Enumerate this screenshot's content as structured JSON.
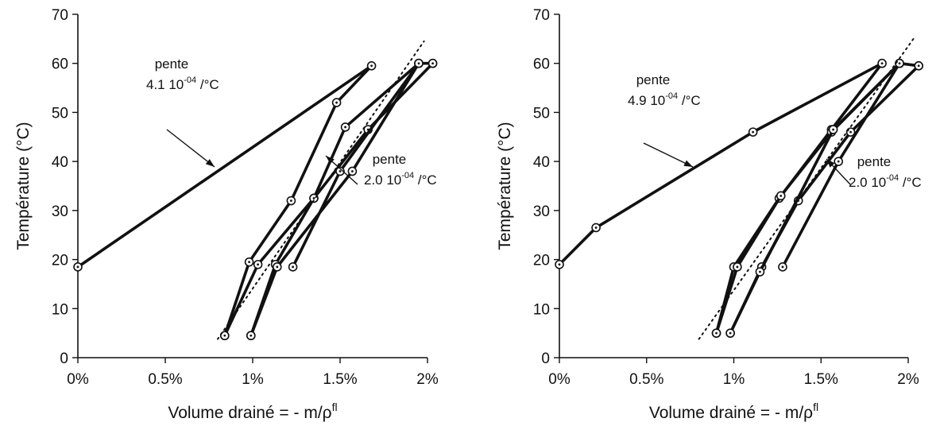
{
  "chart_data": [
    {
      "type": "line",
      "xlabel": "Volume drainé = - m/ρ",
      "xlabel_sup": "fl",
      "ylabel": "Température (°C)",
      "xlim": [
        0,
        2.0
      ],
      "ylim": [
        0,
        70
      ],
      "x_unit": "%",
      "x_ticks": [
        0,
        0.5,
        1.0,
        1.5,
        2.0
      ],
      "x_tick_labels": [
        "0%",
        "0.5%",
        "1%",
        "1.5%",
        "2%"
      ],
      "y_ticks": [
        0,
        10,
        20,
        30,
        40,
        50,
        60,
        70
      ],
      "y_tick_labels": [
        "0",
        "10",
        "20",
        "30",
        "40",
        "50",
        "60",
        "70"
      ],
      "series": [
        {
          "style": "solid",
          "markers": true,
          "points": [
            [
              0.0,
              18.5
            ],
            [
              1.68,
              59.5
            ],
            [
              1.48,
              52
            ],
            [
              1.22,
              32
            ],
            [
              0.98,
              19.5
            ],
            [
              0.84,
              4.5
            ]
          ]
        },
        {
          "style": "solid",
          "markers": true,
          "points": [
            [
              0.84,
              4.5
            ],
            [
              1.03,
              19
            ],
            [
              1.35,
              32.5
            ],
            [
              1.53,
              47
            ],
            [
              1.95,
              60
            ],
            [
              2.03,
              60
            ]
          ]
        },
        {
          "style": "solid",
          "markers": true,
          "points": [
            [
              2.03,
              60
            ],
            [
              1.66,
              46.5
            ],
            [
              1.35,
              32.5
            ],
            [
              1.13,
              19
            ],
            [
              0.99,
              4.5
            ]
          ]
        },
        {
          "style": "solid",
          "markers": true,
          "points": [
            [
              0.99,
              4.5
            ],
            [
              1.14,
              18.5
            ],
            [
              1.57,
              38
            ],
            [
              1.95,
              60
            ]
          ]
        },
        {
          "style": "solid",
          "markers": true,
          "points": [
            [
              1.95,
              60
            ],
            [
              1.5,
              38
            ],
            [
              1.23,
              18.5
            ]
          ]
        },
        {
          "style": "dotted",
          "markers": false,
          "points": [
            [
              0.8,
              3.8
            ],
            [
              1.98,
              64.5
            ]
          ]
        }
      ],
      "annotations": [
        {
          "line1": "pente",
          "coef": "4.1",
          "exp": "-04",
          "unit": "/°C"
        },
        {
          "line1": "pente",
          "coef": "2.0",
          "exp": "-04",
          "unit": "/°C"
        }
      ]
    },
    {
      "type": "line",
      "xlabel": "Volume drainé = - m/ρ",
      "xlabel_sup": "fl",
      "ylabel": "Température (°C)",
      "xlim": [
        0,
        2.0
      ],
      "ylim": [
        0,
        70
      ],
      "x_unit": "%",
      "x_ticks": [
        0,
        0.5,
        1.0,
        1.5,
        2.0
      ],
      "x_tick_labels": [
        "0%",
        "0.5%",
        "1%",
        "1.5%",
        "2%"
      ],
      "y_ticks": [
        0,
        10,
        20,
        30,
        40,
        50,
        60,
        70
      ],
      "y_tick_labels": [
        "0",
        "10",
        "20",
        "30",
        "40",
        "50",
        "60",
        "70"
      ],
      "series": [
        {
          "style": "solid",
          "markers": true,
          "points": [
            [
              0.0,
              19
            ],
            [
              0.21,
              26.5
            ],
            [
              1.11,
              46
            ],
            [
              1.85,
              60
            ],
            [
              1.56,
              46.5
            ],
            [
              1.26,
              32.5
            ],
            [
              1.0,
              18.5
            ],
            [
              0.9,
              5
            ]
          ]
        },
        {
          "style": "solid",
          "markers": true,
          "points": [
            [
              0.9,
              5
            ],
            [
              1.02,
              18.5
            ],
            [
              1.27,
              33
            ],
            [
              1.56,
              46
            ],
            [
              1.95,
              60
            ],
            [
              2.06,
              59.5
            ]
          ]
        },
        {
          "style": "solid",
          "markers": true,
          "points": [
            [
              2.06,
              59.5
            ],
            [
              1.67,
              46
            ],
            [
              1.37,
              32
            ],
            [
              1.16,
              18.5
            ],
            [
              0.98,
              5
            ]
          ]
        },
        {
          "style": "solid",
          "markers": true,
          "points": [
            [
              0.98,
              5
            ],
            [
              1.15,
              17.5
            ],
            [
              1.57,
              46.5
            ],
            [
              1.95,
              60
            ]
          ]
        },
        {
          "style": "solid",
          "markers": true,
          "points": [
            [
              1.95,
              60
            ],
            [
              1.6,
              40
            ],
            [
              1.28,
              18.5
            ]
          ]
        },
        {
          "style": "dotted",
          "markers": false,
          "points": [
            [
              0.8,
              3.8
            ],
            [
              2.03,
              65
            ]
          ]
        }
      ],
      "annotations": [
        {
          "line1": "pente",
          "coef": "4.9",
          "exp": "-04",
          "unit": "/°C"
        },
        {
          "line1": "pente",
          "coef": "2.0",
          "exp": "-04",
          "unit": "/°C"
        }
      ]
    }
  ]
}
